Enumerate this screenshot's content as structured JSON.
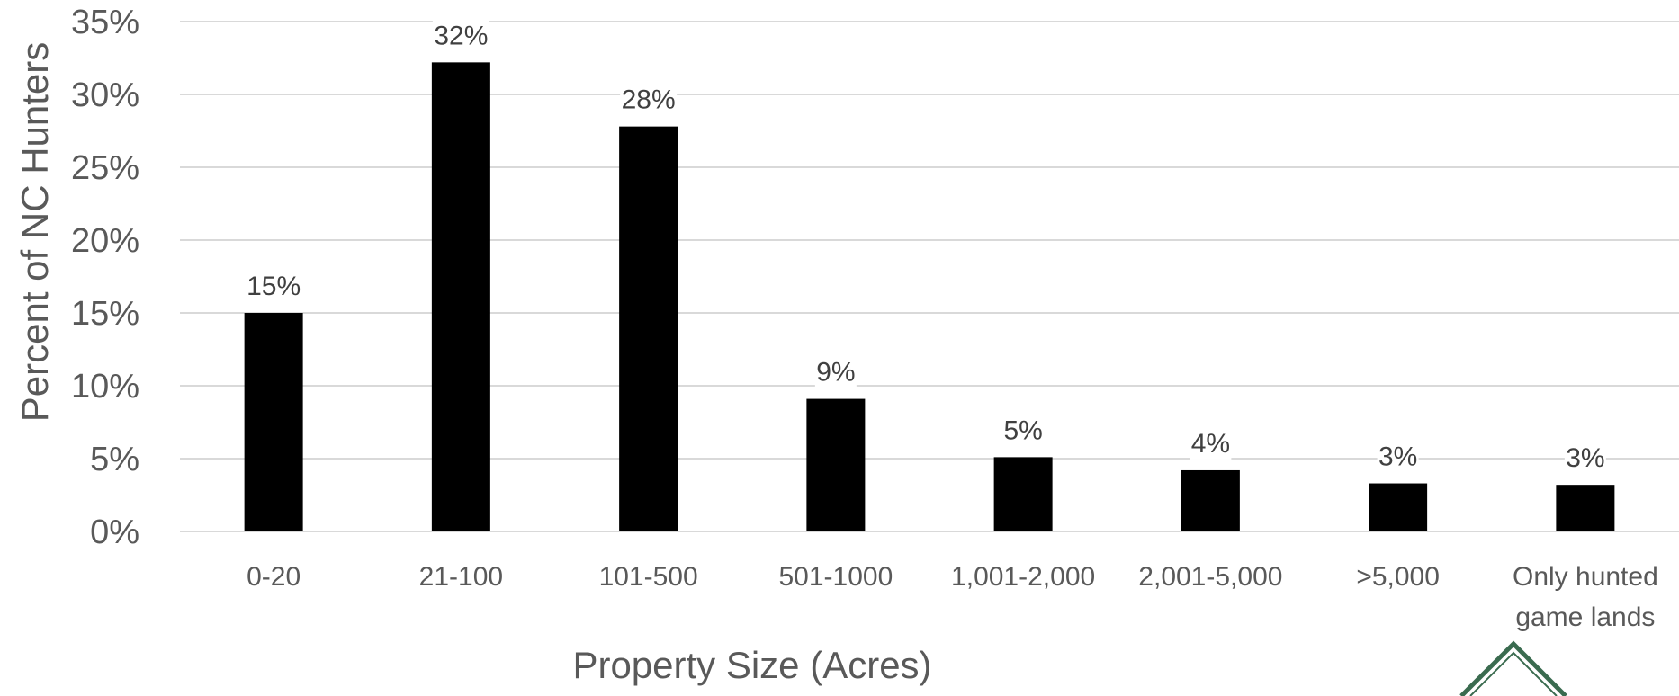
{
  "chart_data": {
    "type": "bar",
    "xlabel": "Property Size (Acres)",
    "ylabel": "Percent of NC Hunters",
    "ylim": [
      0,
      35
    ],
    "ytick_values": [
      0,
      5,
      10,
      15,
      20,
      25,
      30,
      35
    ],
    "ytick_labels": [
      "0%",
      "5%",
      "10%",
      "15%",
      "20%",
      "25%",
      "30%",
      "35%"
    ],
    "grid": true,
    "legend": "none",
    "bar_color": "#000000",
    "categories": [
      [
        "0-20"
      ],
      [
        "21-100"
      ],
      [
        "101-500"
      ],
      [
        "501-1000"
      ],
      [
        "1,001-2,000"
      ],
      [
        "2,001-5,000"
      ],
      [
        ">5,000"
      ],
      [
        "Only hunted",
        "game lands"
      ]
    ],
    "values": [
      15,
      32.2,
      27.8,
      9.1,
      5.1,
      4.2,
      3.3,
      3.2
    ],
    "data_labels": [
      "15%",
      "32%",
      "28%",
      "9%",
      "5%",
      "4%",
      "3%",
      "3%"
    ]
  },
  "logo": {
    "description_icon": "nc-state-wildlife-diamond-logo",
    "color": "#3a6b4f"
  }
}
